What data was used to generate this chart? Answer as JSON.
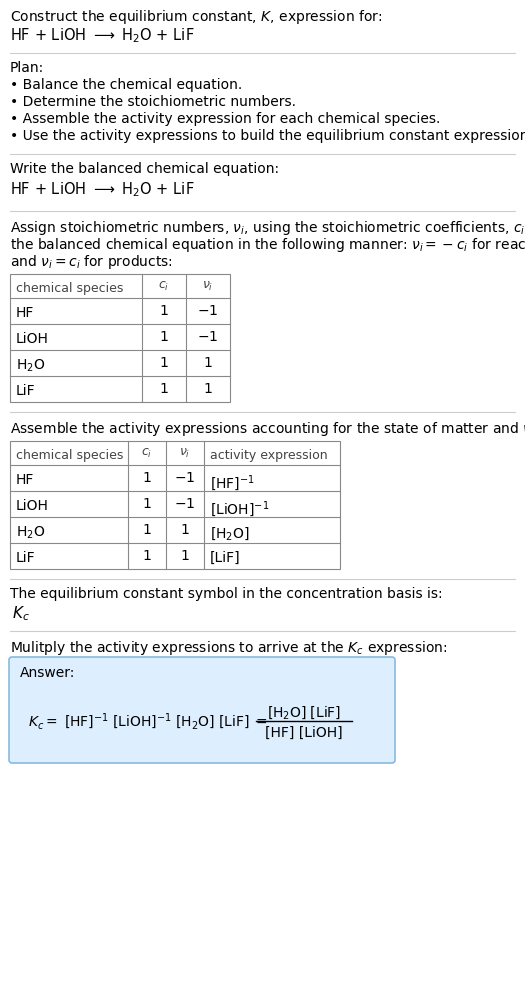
{
  "bg_color": "#ffffff",
  "blue_box_color": "#ddeeff",
  "blue_box_edge": "#88bbdd",
  "sep_color": "#cccccc",
  "table_color": "#888888",
  "title_line1": "Construct the equilibrium constant, $K$, expression for:",
  "eq_display": "HF + LiOH $\\longrightarrow$ H$_2$O + LiF",
  "plan_header": "Plan:",
  "plan_items": [
    "• Balance the chemical equation.",
    "• Determine the stoichiometric numbers.",
    "• Assemble the activity expression for each chemical species.",
    "• Use the activity expressions to build the equilibrium constant expression."
  ],
  "sec2_header": "Write the balanced chemical equation:",
  "sec3_lines": [
    "Assign stoichiometric numbers, $\\nu_i$, using the stoichiometric coefficients, $c_i$, from",
    "the balanced chemical equation in the following manner: $\\nu_i = -c_i$ for reactants",
    "and $\\nu_i = c_i$ for products:"
  ],
  "t1_col_headers": [
    "chemical species",
    "$c_i$",
    "$\\nu_i$"
  ],
  "t1_rows": [
    [
      "HF",
      "1",
      "$-1$"
    ],
    [
      "LiOH",
      "1",
      "$-1$"
    ],
    [
      "H$_2$O",
      "1",
      "$1$"
    ],
    [
      "LiF",
      "1",
      "$1$"
    ]
  ],
  "sec4_line": "Assemble the activity expressions accounting for the state of matter and $\\nu_i$:",
  "t2_col_headers": [
    "chemical species",
    "$c_i$",
    "$\\nu_i$",
    "activity expression"
  ],
  "t2_rows": [
    [
      "HF",
      "1",
      "$-1$",
      "[HF]$^{-1}$"
    ],
    [
      "LiOH",
      "1",
      "$-1$",
      "[LiOH]$^{-1}$"
    ],
    [
      "H$_2$O",
      "1",
      "$1$",
      "[H$_2$O]"
    ],
    [
      "LiF",
      "1",
      "$1$",
      "[LiF]"
    ]
  ],
  "sec5_line": "The equilibrium constant symbol in the concentration basis is:",
  "kc_symbol": "$K_c$",
  "sec6_line": "Mulitply the activity expressions to arrive at the $K_c$ expression:",
  "answer_label": "Answer:",
  "ans_left": "$K_c = $ [HF]$^{-1}$ [LiOH]$^{-1}$ [H$_2$O] [LiF] $=$",
  "ans_num": "[H$_2$O] [LiF]",
  "ans_den": "[HF] [LiOH]"
}
